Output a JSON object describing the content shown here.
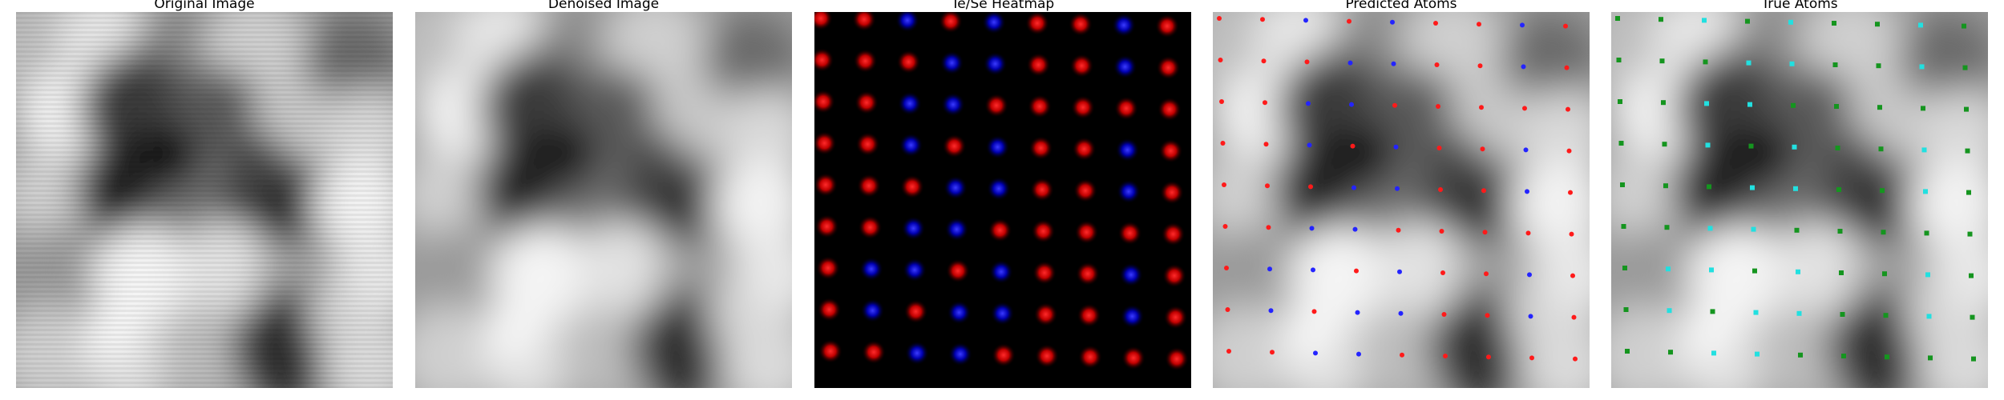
{
  "figure": {
    "panels": [
      {
        "id": "original",
        "title": "Original Image"
      },
      {
        "id": "denoised",
        "title": "Denoised Image"
      },
      {
        "id": "heatmap",
        "title": "Te/Se Heatmap"
      },
      {
        "id": "predicted",
        "title": "Predicted Atoms"
      },
      {
        "id": "true",
        "title": "True Atoms"
      }
    ],
    "colors": {
      "te": "#ff1a1a",
      "se": "#2424ff",
      "true_a": "#22e0e0",
      "true_b": "#15951f",
      "background": "#000000"
    }
  }
}
